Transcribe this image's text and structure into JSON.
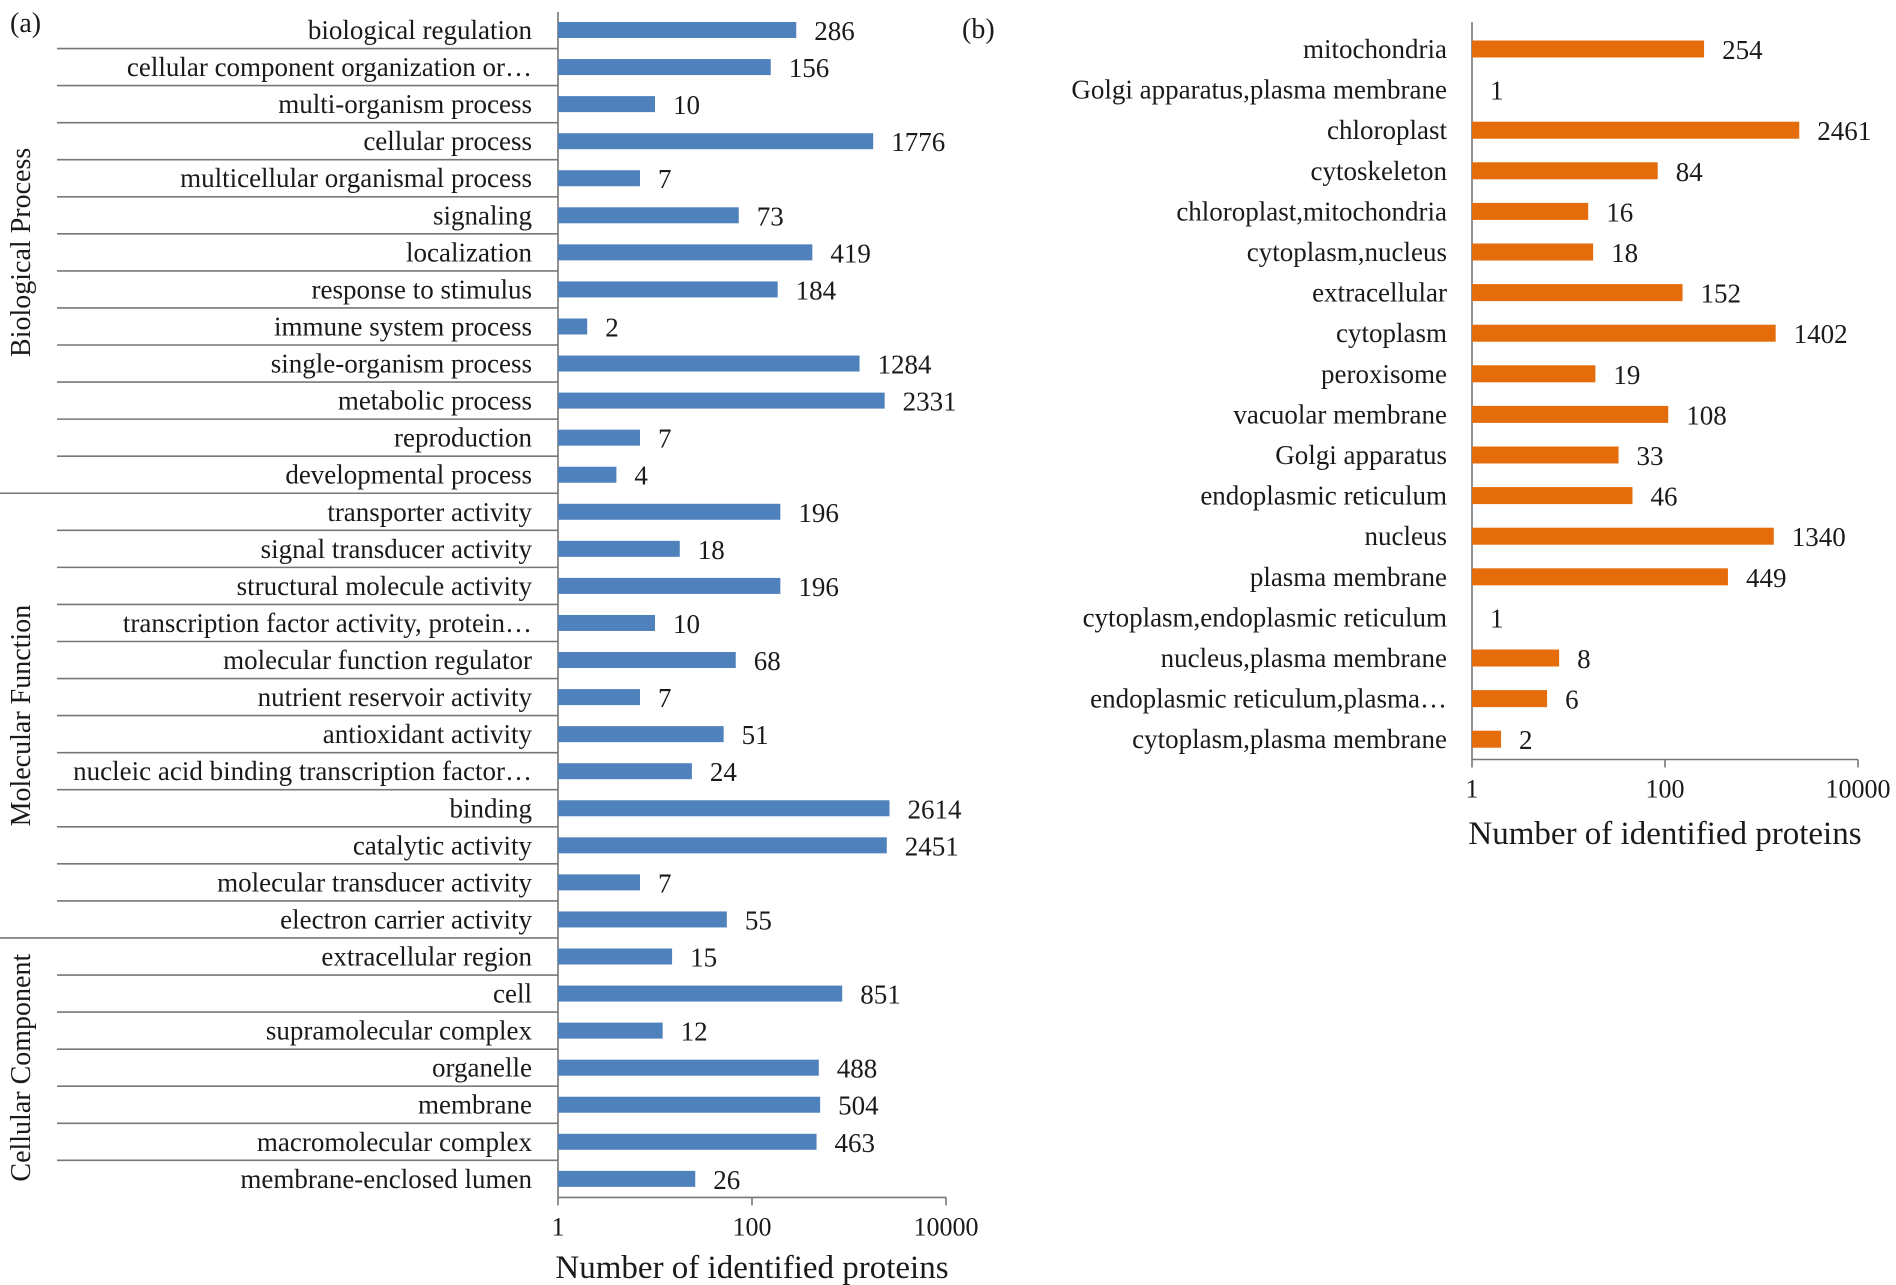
{
  "chart_data": [
    {
      "type": "bar",
      "orientation": "horizontal",
      "panel_label": "(a)",
      "xscale": "log",
      "xlim": [
        1,
        10000
      ],
      "xticks": [
        "1",
        "100",
        "10000"
      ],
      "xlabel": "Number of identified proteins",
      "color": "#4f81bd",
      "groups": [
        {
          "name": "Biological Process",
          "start": 0,
          "end": 12
        },
        {
          "name": "Molecular Function",
          "start": 13,
          "end": 24
        },
        {
          "name": "Cellular Component",
          "start": 25,
          "end": 31
        }
      ],
      "categories": [
        "biological regulation",
        "cellular component organization or…",
        "multi-organism process",
        "cellular process",
        "multicellular organismal process",
        "signaling",
        "localization",
        "response to stimulus",
        "immune system process",
        "single-organism process",
        "metabolic process",
        "reproduction",
        "developmental process",
        "transporter activity",
        "signal transducer activity",
        "structural molecule activity",
        "transcription factor activity, protein…",
        "molecular function regulator",
        "nutrient reservoir activity",
        "antioxidant activity",
        "nucleic acid binding transcription factor…",
        "binding",
        "catalytic activity",
        "molecular transducer activity",
        "electron carrier activity",
        "extracellular region",
        "cell",
        "supramolecular complex",
        "organelle",
        "membrane",
        "macromolecular complex",
        "membrane-enclosed lumen"
      ],
      "values": [
        286,
        156,
        10,
        1776,
        7,
        73,
        419,
        184,
        2,
        1284,
        2331,
        7,
        4,
        196,
        18,
        196,
        10,
        68,
        7,
        51,
        24,
        2614,
        2451,
        7,
        55,
        15,
        851,
        12,
        488,
        504,
        463,
        26
      ]
    },
    {
      "type": "bar",
      "orientation": "horizontal",
      "panel_label": "(b)",
      "xscale": "log",
      "xlim": [
        1,
        10000
      ],
      "xticks": [
        "1",
        "100",
        "10000"
      ],
      "xlabel": "Number of identified proteins",
      "color": "#e46c0a",
      "categories": [
        "mitochondria",
        "Golgi apparatus,plasma membrane",
        "chloroplast",
        "cytoskeleton",
        "chloroplast,mitochondria",
        "cytoplasm,nucleus",
        "extracellular",
        "cytoplasm",
        "peroxisome",
        "vacuolar membrane",
        "Golgi apparatus",
        "endoplasmic reticulum",
        "nucleus",
        "plasma membrane",
        "cytoplasm,endoplasmic reticulum",
        "nucleus,plasma membrane",
        "endoplasmic reticulum,plasma…",
        "cytoplasm,plasma membrane"
      ],
      "values": [
        254,
        1,
        2461,
        84,
        16,
        18,
        152,
        1402,
        19,
        108,
        33,
        46,
        1340,
        449,
        1,
        8,
        6,
        2
      ]
    }
  ]
}
